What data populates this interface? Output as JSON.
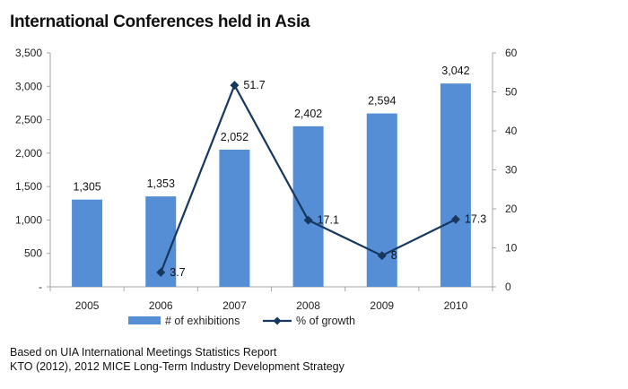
{
  "page": {
    "title": "International Conferences held in Asia",
    "source_lines": [
      "Based on UIA International Meetings Statistics Report",
      "KTO (2012), 2012 MICE Long-Term Industry Development Strategy"
    ]
  },
  "chart_data": {
    "type": "bar",
    "title": "International Conferences held in Asia",
    "categories": [
      "2005",
      "2006",
      "2007",
      "2008",
      "2009",
      "2010"
    ],
    "series": [
      {
        "name": "# of exhibitions",
        "type": "bar",
        "axis": "left",
        "color": "#558ED5",
        "values": [
          1305,
          1353,
          2052,
          2402,
          2594,
          3042
        ],
        "labels": [
          "1,305",
          "1,353",
          "2,052",
          "2,402",
          "2,594",
          "3,042"
        ]
      },
      {
        "name": "% of growth",
        "type": "line",
        "axis": "right",
        "color": "#17375E",
        "values": [
          null,
          3.7,
          51.7,
          17.1,
          8,
          17.3
        ],
        "labels": [
          "",
          "3.7",
          "51.7",
          "17.1",
          "8",
          "17.3"
        ]
      }
    ],
    "y_left": {
      "ylim": [
        0,
        3500
      ],
      "ticks": [
        0,
        500,
        1000,
        1500,
        2000,
        2500,
        3000,
        3500
      ],
      "tick_labels": [
        "-",
        "500",
        "1,000",
        "1,500",
        "2,000",
        "2,500",
        "3,000",
        "3,500"
      ]
    },
    "y_right": {
      "ylim": [
        0,
        60
      ],
      "ticks": [
        0,
        10,
        20,
        30,
        40,
        50,
        60
      ],
      "tick_labels": [
        "0",
        "10",
        "20",
        "30",
        "40",
        "50",
        "60"
      ]
    },
    "grid": false,
    "legend_position": "bottom"
  }
}
